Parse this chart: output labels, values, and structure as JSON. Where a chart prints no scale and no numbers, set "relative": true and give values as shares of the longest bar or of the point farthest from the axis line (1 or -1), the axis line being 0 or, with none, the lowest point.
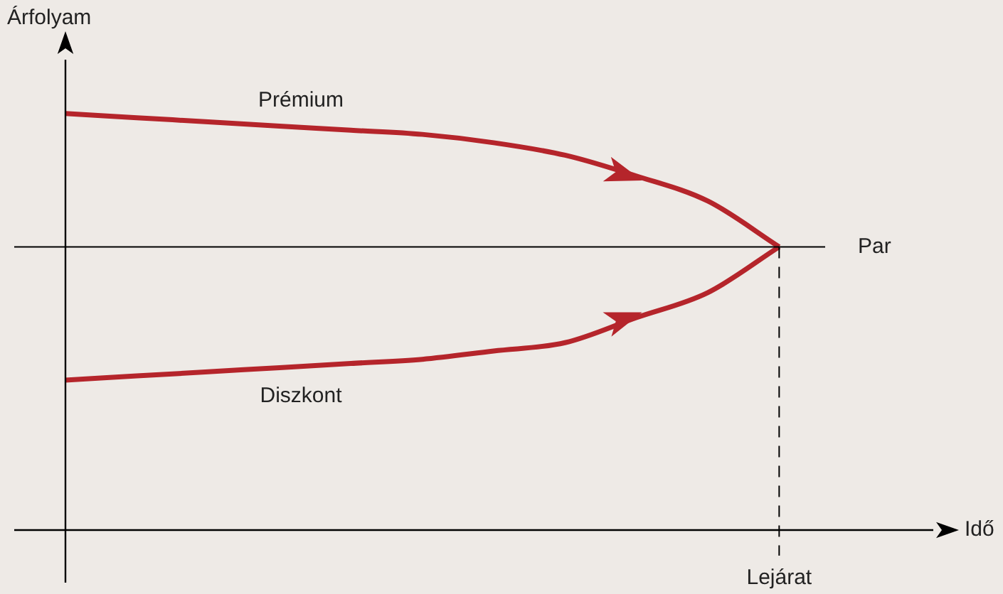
{
  "chart_data": {
    "type": "line",
    "relative": true,
    "xlabel": "Idő",
    "ylabel": "Árfolyam",
    "categories": [
      null,
      null,
      null,
      null,
      null,
      null,
      null,
      null,
      null,
      null,
      null,
      null,
      null
    ],
    "series": [
      {
        "name": "Prémium",
        "color": "#b5252b",
        "values": [
          1,
          0.99,
          0.98,
          0.97,
          0.96,
          0.95,
          0.93,
          0.9,
          0.85,
          0.79,
          0.68,
          null,
          null
        ]
      },
      {
        "name": "Diszkont",
        "color": "#b5252b",
        "values": [
          0.36,
          0.37,
          0.38,
          0.39,
          0.4,
          0.41,
          0.43,
          0.45,
          0.51,
          0.57,
          0.68,
          null,
          null
        ]
      }
    ],
    "ref_lines": [
      {
        "axis": "y",
        "value": 0.68,
        "label": "Par",
        "color": "#000000",
        "line_style": "solid"
      }
    ],
    "annotations": [
      "Lejárat"
    ]
  }
}
